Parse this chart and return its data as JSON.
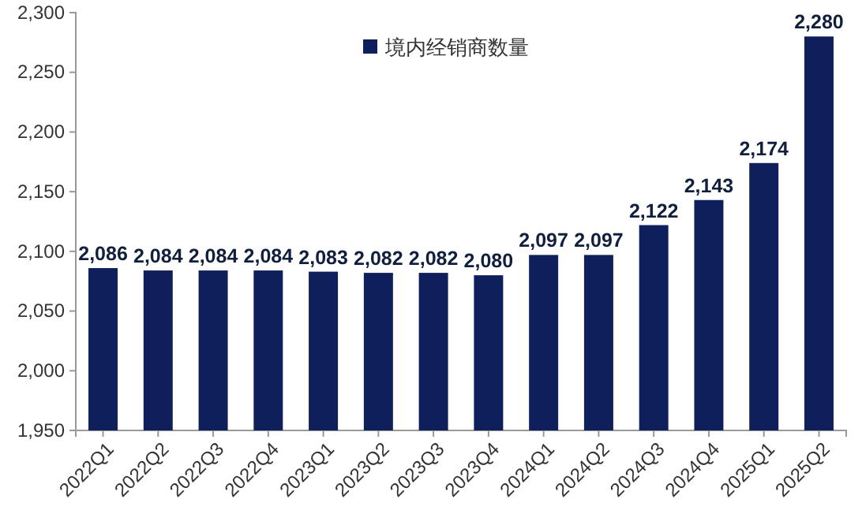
{
  "chart_data": {
    "type": "bar",
    "categories": [
      "2022Q1",
      "2022Q2",
      "2022Q3",
      "2022Q4",
      "2023Q1",
      "2023Q2",
      "2023Q3",
      "2023Q4",
      "2024Q1",
      "2024Q2",
      "2024Q3",
      "2024Q4",
      "2025Q1",
      "2025Q2"
    ],
    "series": [
      {
        "name": "境内经销商数量",
        "color": "#0f1f5c",
        "values": [
          2086,
          2084,
          2084,
          2084,
          2083,
          2082,
          2082,
          2080,
          2097,
          2097,
          2122,
          2143,
          2174,
          2280
        ],
        "value_labels": [
          "2,086",
          "2,084",
          "2,084",
          "2,084",
          "2,083",
          "2,082",
          "2,082",
          "2,080",
          "2,097",
          "2,097",
          "2,122",
          "2,143",
          "2,174",
          "2,280"
        ]
      }
    ],
    "ylim": [
      1950,
      2300
    ],
    "yticks": [
      {
        "value": 1950,
        "label": "1,950"
      },
      {
        "value": 2000,
        "label": "2,000"
      },
      {
        "value": 2050,
        "label": "2,050"
      },
      {
        "value": 2100,
        "label": "2,100"
      },
      {
        "value": 2150,
        "label": "2,150"
      },
      {
        "value": 2200,
        "label": "2,200"
      },
      {
        "value": 2250,
        "label": "2,250"
      },
      {
        "value": 2300,
        "label": "2,300"
      }
    ],
    "legend": "top",
    "grid": false
  }
}
